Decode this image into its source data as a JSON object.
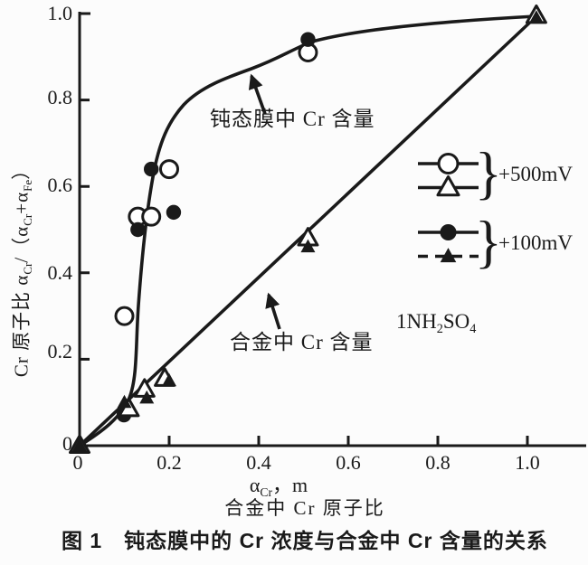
{
  "colors": {
    "ink": "#1a1a1a",
    "background": "#ffffff"
  },
  "figure": {
    "caption": "图 1　钝态膜中的 Cr 浓度与合金中 Cr 含量的关系"
  },
  "axes": {
    "y": {
      "tick_labels": [
        "1.0",
        "0.8",
        "0.6",
        "0.4",
        "0.2",
        "0"
      ],
      "label": {
        "p1": "Cr 原子比 α",
        "s1": "Cr",
        "p2": "/（α",
        "s2": "Cr",
        "p3": "+α",
        "s3": "Fe",
        "p4": "）"
      }
    },
    "x": {
      "tick_labels": [
        "0",
        "0.2",
        "0.4",
        "0.6",
        "0.8",
        "1.0"
      ],
      "label": {
        "t1": "α",
        "s1": "Cr",
        "t2": "，m"
      },
      "label_line2": "合金中 Cr 原子比"
    }
  },
  "annotations": {
    "film_curve": "钝态膜中 Cr 含量",
    "alloy_line": "合金中 Cr 含量",
    "electrolyte": {
      "t1": "1NH",
      "s1": "2",
      "t2": "SO",
      "s2": "4"
    }
  },
  "legend": {
    "brace": "}",
    "groups": [
      {
        "label": "+500mV",
        "markers": [
          "open-circle",
          "open-triangle"
        ],
        "line_styles": [
          "solid",
          "solid"
        ]
      },
      {
        "label": "+100mV",
        "markers": [
          "filled-circle",
          "filled-triangle"
        ],
        "line_styles": [
          "solid",
          "dashed"
        ]
      }
    ]
  },
  "chart_data": {
    "type": "scatter",
    "title": "钝态膜中的 Cr 浓度与合金中 Cr 含量的关系",
    "xlabel": "α_Cr, m（合金中 Cr 原子比）",
    "ylabel": "Cr 原子比 α_Cr/(α_Cr+α_Fe)",
    "xlim": [
      0,
      1.12
    ],
    "ylim": [
      0,
      1.0
    ],
    "x_ticks": [
      0,
      0.2,
      0.4,
      0.6,
      0.8,
      1.0
    ],
    "y_ticks": [
      0,
      0.2,
      0.4,
      0.6,
      0.8,
      1.0
    ],
    "grid": false,
    "legend_position": "center-right",
    "condition_label": "1NH2SO4",
    "series": [
      {
        "name": "钝态膜中 Cr 含量 +500mV",
        "marker": "open-circle",
        "points": [
          [
            0.1,
            0.3
          ],
          [
            0.13,
            0.53
          ],
          [
            0.16,
            0.53
          ],
          [
            0.2,
            0.64
          ],
          [
            0.51,
            0.91
          ]
        ]
      },
      {
        "name": "钝态膜中 Cr 含量 +100mV",
        "marker": "filled-circle",
        "points": [
          [
            0.099,
            0.071
          ],
          [
            0.13,
            0.5
          ],
          [
            0.16,
            0.64
          ],
          [
            0.21,
            0.54
          ],
          [
            0.51,
            0.94
          ]
        ]
      },
      {
        "name": "合金中 Cr 含量 +500mV",
        "marker": "open-triangle",
        "points": [
          [
            0.0,
            0.0
          ],
          [
            0.11,
            0.085
          ],
          [
            0.145,
            0.13
          ],
          [
            0.19,
            0.155
          ],
          [
            0.51,
            0.48
          ],
          [
            1.02,
            0.995
          ]
        ]
      },
      {
        "name": "合金中 Cr 含量 +100mV",
        "marker": "filled-triangle",
        "points": [
          [
            0.0,
            0.0
          ],
          [
            0.1,
            0.1
          ],
          [
            0.15,
            0.11
          ],
          [
            0.2,
            0.15
          ],
          [
            0.51,
            0.46
          ],
          [
            1.02,
            0.99
          ]
        ]
      }
    ],
    "trend_lines": [
      {
        "name": "钝态膜中 Cr 含量 (passive film curve)",
        "points": [
          [
            0,
            0
          ],
          [
            0.1,
            0.09
          ],
          [
            0.12,
            0.25
          ],
          [
            0.13,
            0.4
          ],
          [
            0.16,
            0.62
          ],
          [
            0.2,
            0.75
          ],
          [
            0.3,
            0.86
          ],
          [
            0.51,
            0.935
          ],
          [
            1.02,
            0.99
          ]
        ]
      },
      {
        "name": "合金中 Cr 含量 (alloy straight line)",
        "points": [
          [
            0,
            0
          ],
          [
            1.02,
            0.99
          ]
        ]
      }
    ]
  }
}
